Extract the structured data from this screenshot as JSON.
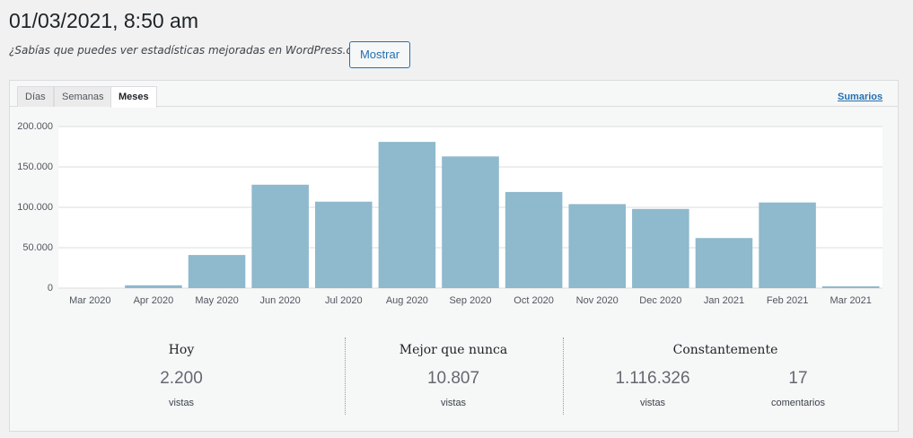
{
  "header": {
    "title": "01/03/2021, 8:50 am",
    "notice": "¿Sabías que puedes ver estadísticas mejoradas en WordPress.com?",
    "button": "Mostrar"
  },
  "tabs": {
    "items": [
      "Días",
      "Semanas",
      "Meses"
    ],
    "active": "Meses",
    "link": "Sumarios"
  },
  "chart_data": {
    "type": "bar",
    "categories": [
      "Mar 2020",
      "Apr 2020",
      "May 2020",
      "Jun 2020",
      "Jul 2020",
      "Aug 2020",
      "Sep 2020",
      "Oct 2020",
      "Nov 2020",
      "Dec 2020",
      "Jan 2021",
      "Feb 2021",
      "Mar 2021"
    ],
    "values": [
      0,
      3500,
      41000,
      128000,
      107000,
      181000,
      163000,
      119000,
      104000,
      98000,
      62000,
      106000,
      2200
    ],
    "color": "#8fb9cc",
    "ylim": [
      0,
      200000
    ],
    "yticks": [
      0,
      {
        "value": 50000,
        "label": "50.000"
      },
      {
        "value": 100000,
        "label": "100.000"
      },
      {
        "value": 150000,
        "label": "150.000"
      },
      {
        "value": 200000,
        "label": "200.000"
      }
    ],
    "grid": true
  },
  "stats": [
    {
      "title": "Hoy",
      "items": [
        {
          "number": "2.200",
          "label": "vistas"
        }
      ]
    },
    {
      "title": "Mejor que nunca",
      "items": [
        {
          "number": "10.807",
          "label": "vistas"
        }
      ]
    },
    {
      "title": "Constantemente",
      "items": [
        {
          "number": "1.116.326",
          "label": "vistas"
        },
        {
          "number": "17",
          "label": "comentarios"
        }
      ]
    }
  ]
}
